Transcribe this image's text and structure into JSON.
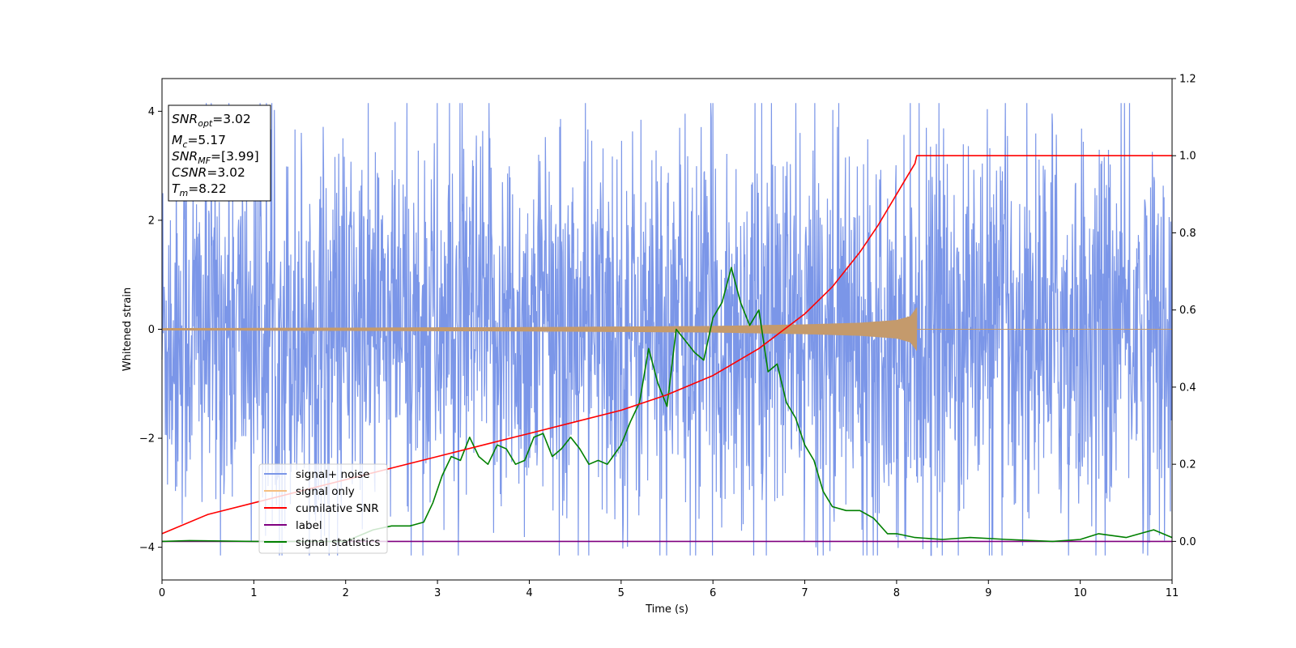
{
  "chart_data": {
    "type": "line",
    "title": "",
    "xlabel": "Time (s)",
    "ylabel": "Whitened strain",
    "xlim": [
      0,
      11
    ],
    "ylim_left": [
      -4.6,
      4.6
    ],
    "ylim_right": [
      -0.1,
      1.2
    ],
    "x_ticks": [
      0,
      1,
      2,
      3,
      4,
      5,
      6,
      7,
      8,
      9,
      10,
      11
    ],
    "y_left_ticks": [
      -4,
      -2,
      0,
      2,
      4
    ],
    "y_right_ticks": [
      "0.0",
      "0.2",
      "0.4",
      "0.6",
      "0.8",
      "1.0",
      "1.2"
    ],
    "grid": false,
    "legend_position": "lower-left",
    "info_box": {
      "snr_opt": {
        "label": "SNR",
        "sub": "opt",
        "value": "=3.02"
      },
      "mc": {
        "label": "M",
        "sub": "c",
        "value": "=5.17"
      },
      "snr_mf": {
        "label": "SNR",
        "sub": "MF",
        "value": "=[3.99]"
      },
      "csnr": {
        "label": "CSNR",
        "sub": "",
        "value": "=3.02"
      },
      "tm": {
        "label": "T",
        "sub": "m",
        "value": "=8.22"
      }
    },
    "series": [
      {
        "name": "signal+ noise",
        "color": "#7b96e8",
        "axis": "left",
        "kind": "noise",
        "x_range": [
          0,
          11
        ],
        "typical_amplitude": 2.3,
        "max": 4.15,
        "min": -4.15
      },
      {
        "name": "signal only",
        "color": "#f5bf80",
        "axis": "left",
        "kind": "chirp",
        "x_range": [
          0,
          8.22
        ],
        "envelope": {
          "x": [
            0,
            2,
            4,
            6,
            7,
            7.6,
            8.0,
            8.15,
            8.22
          ],
          "y": [
            0.02,
            0.03,
            0.04,
            0.06,
            0.09,
            0.12,
            0.17,
            0.24,
            0.4
          ]
        }
      },
      {
        "name": "cumilative SNR",
        "color": "#ff0000",
        "axis": "right",
        "x": [
          0,
          0.5,
          1,
          1.5,
          2,
          2.5,
          3,
          3.5,
          4,
          4.5,
          5,
          5.5,
          6,
          6.5,
          7,
          7.3,
          7.6,
          7.8,
          8.0,
          8.1,
          8.2,
          8.22,
          8.3,
          9,
          10,
          11
        ],
        "values": [
          0.02,
          0.07,
          0.1,
          0.13,
          0.16,
          0.19,
          0.22,
          0.25,
          0.28,
          0.31,
          0.34,
          0.38,
          0.43,
          0.5,
          0.59,
          0.66,
          0.75,
          0.82,
          0.9,
          0.94,
          0.98,
          1.0,
          1.0,
          1.0,
          1.0,
          1.0
        ]
      },
      {
        "name": "label",
        "color": "#800080",
        "axis": "right",
        "x": [
          0,
          11
        ],
        "values": [
          0.0,
          0.0
        ]
      },
      {
        "name": "signal statistics",
        "color": "#008000",
        "axis": "right",
        "x": [
          0,
          0.3,
          1,
          2,
          2.3,
          2.5,
          2.7,
          2.85,
          2.95,
          3.05,
          3.15,
          3.25,
          3.35,
          3.45,
          3.55,
          3.65,
          3.75,
          3.85,
          3.95,
          4.05,
          4.15,
          4.25,
          4.35,
          4.45,
          4.55,
          4.65,
          4.75,
          4.85,
          5.0,
          5.1,
          5.2,
          5.3,
          5.4,
          5.5,
          5.6,
          5.7,
          5.8,
          5.9,
          6.0,
          6.1,
          6.2,
          6.3,
          6.4,
          6.5,
          6.6,
          6.7,
          6.8,
          6.9,
          7.0,
          7.1,
          7.2,
          7.3,
          7.45,
          7.6,
          7.75,
          7.9,
          8.0,
          8.2,
          8.5,
          8.8,
          9.2,
          9.7,
          10.0,
          10.2,
          10.5,
          10.8,
          11
        ],
        "values": [
          0.0,
          0.002,
          0.0,
          0.0,
          0.03,
          0.04,
          0.04,
          0.05,
          0.1,
          0.17,
          0.22,
          0.21,
          0.27,
          0.22,
          0.2,
          0.25,
          0.24,
          0.2,
          0.21,
          0.27,
          0.28,
          0.22,
          0.24,
          0.27,
          0.24,
          0.2,
          0.21,
          0.2,
          0.25,
          0.31,
          0.36,
          0.5,
          0.41,
          0.35,
          0.55,
          0.52,
          0.49,
          0.47,
          0.58,
          0.62,
          0.71,
          0.62,
          0.56,
          0.6,
          0.44,
          0.46,
          0.36,
          0.32,
          0.25,
          0.21,
          0.13,
          0.09,
          0.08,
          0.08,
          0.06,
          0.02,
          0.02,
          0.01,
          0.005,
          0.01,
          0.005,
          0.0,
          0.005,
          0.02,
          0.01,
          0.03,
          0.01
        ]
      }
    ]
  }
}
